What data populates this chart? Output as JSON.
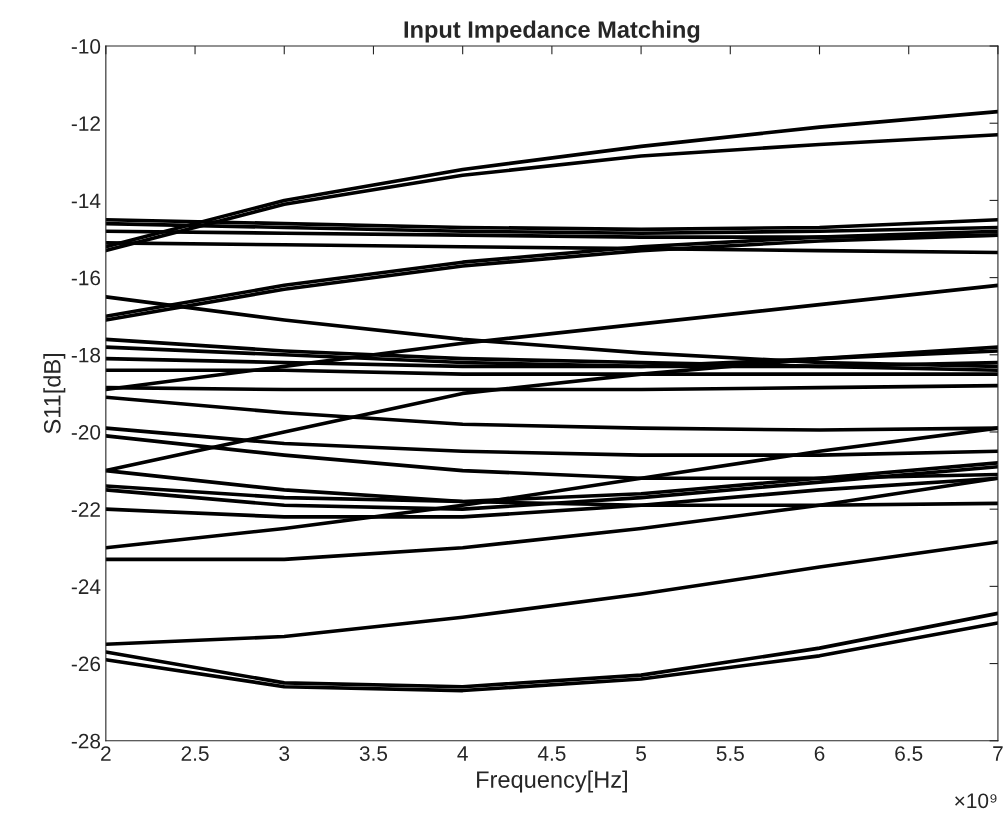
{
  "chart_data": {
    "type": "line",
    "title": "Input Impedance Matching",
    "xlabel": "Frequency[Hz]",
    "ylabel": "S11[dB]",
    "x": [
      2,
      3,
      4,
      5,
      6,
      7
    ],
    "xlim": [
      2,
      7
    ],
    "xticks": [
      2,
      2.5,
      3,
      3.5,
      4,
      4.5,
      5,
      5.5,
      6,
      6.5,
      7
    ],
    "ylim": [
      -28,
      -10
    ],
    "yticks": [
      -28,
      -26,
      -24,
      -22,
      -20,
      -18,
      -16,
      -14,
      -12,
      -10
    ],
    "annotations": [
      "×10⁹"
    ],
    "series": [
      {
        "color": "#000000",
        "values": [
          -15.2,
          -14.0,
          -13.2,
          -12.6,
          -12.1,
          -11.7
        ]
      },
      {
        "color": "#000000",
        "values": [
          -15.3,
          -14.1,
          -13.35,
          -12.85,
          -12.55,
          -12.3
        ]
      },
      {
        "color": "#000000",
        "values": [
          -14.5,
          -14.6,
          -14.7,
          -14.75,
          -14.7,
          -14.5
        ]
      },
      {
        "color": "#000000",
        "values": [
          -14.6,
          -14.7,
          -14.8,
          -14.85,
          -14.8,
          -14.7
        ]
      },
      {
        "color": "#000000",
        "values": [
          -14.8,
          -14.85,
          -14.9,
          -14.95,
          -14.95,
          -14.9
        ]
      },
      {
        "color": "#000000",
        "values": [
          -15.1,
          -15.15,
          -15.2,
          -15.25,
          -15.3,
          -15.35
        ]
      },
      {
        "color": "#000000",
        "values": [
          -17.0,
          -16.2,
          -15.6,
          -15.2,
          -14.95,
          -14.8
        ]
      },
      {
        "color": "#000000",
        "values": [
          -17.1,
          -16.3,
          -15.7,
          -15.3,
          -15.05,
          -14.9
        ]
      },
      {
        "color": "#000000",
        "values": [
          -16.5,
          -17.1,
          -17.6,
          -17.95,
          -18.2,
          -18.3
        ]
      },
      {
        "color": "#000000",
        "values": [
          -18.9,
          -18.3,
          -17.7,
          -17.2,
          -16.7,
          -16.2
        ]
      },
      {
        "color": "#000000",
        "values": [
          -21.0,
          -20.0,
          -19.0,
          -18.5,
          -18.1,
          -17.8
        ]
      },
      {
        "color": "#000000",
        "values": [
          -21.0,
          -21.5,
          -21.8,
          -21.9,
          -21.9,
          -21.85
        ]
      },
      {
        "color": "#000000",
        "values": [
          -17.6,
          -17.9,
          -18.1,
          -18.2,
          -18.3,
          -18.4
        ]
      },
      {
        "color": "#000000",
        "values": [
          -17.8,
          -18.0,
          -18.2,
          -18.3,
          -18.1,
          -17.9
        ]
      },
      {
        "color": "#000000",
        "values": [
          -18.1,
          -18.2,
          -18.3,
          -18.3,
          -18.3,
          -18.2
        ]
      },
      {
        "color": "#000000",
        "values": [
          -18.4,
          -18.4,
          -18.5,
          -18.5,
          -18.5,
          -18.5
        ]
      },
      {
        "color": "#000000",
        "values": [
          -18.85,
          -18.9,
          -18.9,
          -18.9,
          -18.85,
          -18.8
        ]
      },
      {
        "color": "#000000",
        "values": [
          -19.1,
          -19.5,
          -19.8,
          -19.9,
          -19.95,
          -19.9
        ]
      },
      {
        "color": "#000000",
        "values": [
          -19.9,
          -20.3,
          -20.5,
          -20.6,
          -20.6,
          -20.5
        ]
      },
      {
        "color": "#000000",
        "values": [
          -20.1,
          -20.6,
          -21.0,
          -21.2,
          -21.2,
          -21.1
        ]
      },
      {
        "color": "#000000",
        "values": [
          -21.4,
          -21.7,
          -21.8,
          -21.6,
          -21.2,
          -20.8
        ]
      },
      {
        "color": "#000000",
        "values": [
          -21.5,
          -21.9,
          -22.0,
          -21.7,
          -21.3,
          -20.9
        ]
      },
      {
        "color": "#000000",
        "values": [
          -22.0,
          -22.2,
          -22.2,
          -21.9,
          -21.5,
          -21.2
        ]
      },
      {
        "color": "#000000",
        "values": [
          -23.0,
          -22.5,
          -21.9,
          -21.2,
          -20.5,
          -19.9
        ]
      },
      {
        "color": "#000000",
        "values": [
          -23.3,
          -23.3,
          -23.0,
          -22.5,
          -21.9,
          -21.2
        ]
      },
      {
        "color": "#000000",
        "values": [
          -25.5,
          -25.3,
          -24.8,
          -24.2,
          -23.5,
          -22.85
        ]
      },
      {
        "color": "#000000",
        "values": [
          -25.7,
          -26.5,
          -26.6,
          -26.3,
          -25.6,
          -24.7
        ]
      },
      {
        "color": "#000000",
        "values": [
          -25.9,
          -26.6,
          -26.7,
          -26.4,
          -25.8,
          -24.95
        ]
      }
    ]
  }
}
